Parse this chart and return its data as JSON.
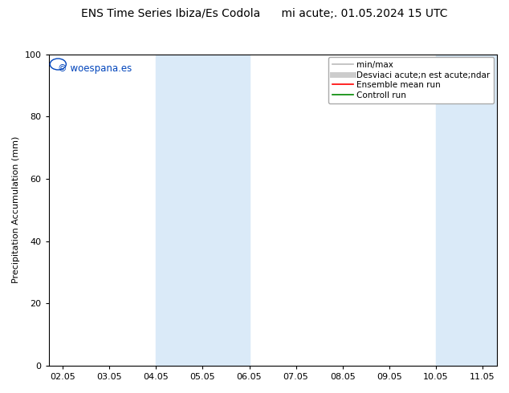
{
  "title_left": "ENS Time Series Ibiza/Es Codola",
  "title_right": "mi acute;. 01.05.2024 15 UTC",
  "ylabel": "Precipitation Accumulation (mm)",
  "ylim": [
    0,
    100
  ],
  "yticks": [
    0,
    20,
    40,
    60,
    80,
    100
  ],
  "xtick_labels": [
    "02.05",
    "03.05",
    "04.05",
    "05.05",
    "06.05",
    "07.05",
    "08.05",
    "09.05",
    "10.05",
    "11.05"
  ],
  "shaded_regions": [
    {
      "xstart": 2,
      "xend": 4
    },
    {
      "xstart": 8,
      "xend": 9.3
    }
  ],
  "shaded_color": "#daeaf8",
  "background_color": "#ffffff",
  "plot_bg_color": "#ffffff",
  "watermark": "© woespana.es",
  "legend_entries": [
    {
      "label": "min/max",
      "color": "#bbbbbb",
      "lw": 1.2
    },
    {
      "label": "Desviaci acute;n est acute;ndar",
      "color": "#cccccc",
      "lw": 5
    },
    {
      "label": "Ensemble mean run",
      "color": "#ff0000",
      "lw": 1.2
    },
    {
      "label": "Controll run",
      "color": "#008800",
      "lw": 1.2
    }
  ],
  "axis_color": "#000000",
  "title_fontsize": 10,
  "label_fontsize": 8,
  "tick_fontsize": 8,
  "legend_fontsize": 7.5,
  "watermark_fontsize": 8.5
}
